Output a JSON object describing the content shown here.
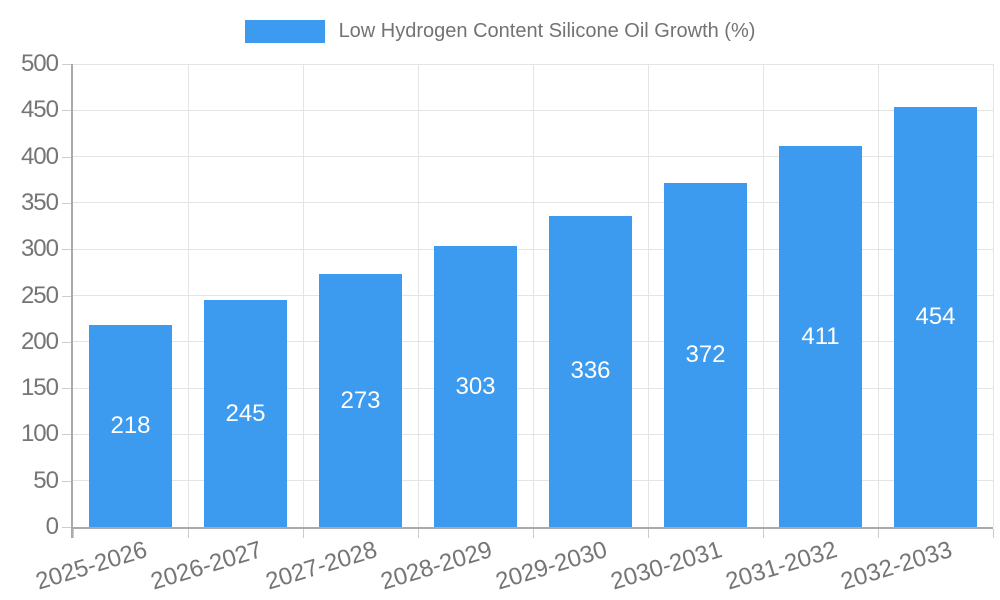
{
  "legend": {
    "label": "Low Hydrogen Content Silicone Oil Growth (%)",
    "swatch_color": "#3c9aef"
  },
  "chart_data": {
    "type": "bar",
    "title": "",
    "xlabel": "",
    "ylabel": "",
    "categories": [
      "2025-2026",
      "2026-2027",
      "2027-2028",
      "2028-2029",
      "2029-2030",
      "2030-2031",
      "2031-2032",
      "2032-2033"
    ],
    "series": [
      {
        "name": "Low Hydrogen Content Silicone Oil Growth (%)",
        "values": [
          218,
          245,
          273,
          303,
          336,
          372,
          411,
          454
        ],
        "color": "#3c9aef"
      }
    ],
    "value_labels_shown": true,
    "value_label_color": "#ffffff",
    "ylim": [
      0,
      500
    ],
    "y_ticks": [
      0,
      50,
      100,
      150,
      200,
      250,
      300,
      350,
      400,
      450,
      500
    ],
    "grid": true,
    "legend_position": "top-center",
    "x_tick_rotation_deg": -17,
    "colors": {
      "grid": "#e4e4e4",
      "axis": "#aaaaaa",
      "tick": "#cccccc",
      "axis_text": "#757575"
    }
  }
}
